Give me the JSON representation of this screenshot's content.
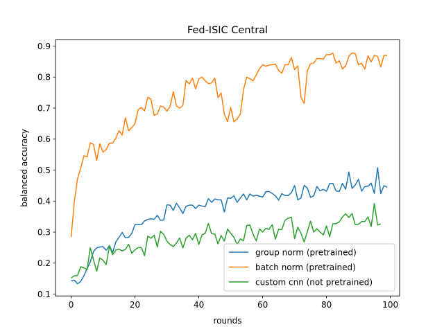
{
  "chart_data": {
    "type": "line",
    "title": "Fed-ISIC Central",
    "xlabel": "rounds",
    "ylabel": "balanced accuracy",
    "xlim": [
      -4.9,
      102.9
    ],
    "ylim": [
      0.094,
      0.92
    ],
    "x_ticks": [
      0,
      20,
      40,
      60,
      80,
      100
    ],
    "y_ticks": [
      0.1,
      0.2,
      0.3,
      0.4,
      0.5,
      0.6,
      0.7,
      0.8,
      0.9
    ],
    "grid": false,
    "legend_position": "lower-right",
    "series": [
      {
        "name": "group norm (pretrained)",
        "color": "#1f77b4",
        "values": [
          0.143,
          0.145,
          0.133,
          0.141,
          0.159,
          0.182,
          0.204,
          0.237,
          0.249,
          0.252,
          0.253,
          0.241,
          0.257,
          0.234,
          0.268,
          0.283,
          0.299,
          0.282,
          0.283,
          0.296,
          0.324,
          0.324,
          0.324,
          0.336,
          0.341,
          0.343,
          0.341,
          0.354,
          0.338,
          0.339,
          0.388,
          0.387,
          0.37,
          0.393,
          0.378,
          0.36,
          0.383,
          0.387,
          0.387,
          0.376,
          0.387,
          0.384,
          0.382,
          0.408,
          0.396,
          0.407,
          0.404,
          0.404,
          0.365,
          0.41,
          0.409,
          0.417,
          0.396,
          0.41,
          0.423,
          0.404,
          0.423,
          0.416,
          0.419,
          0.416,
          0.413,
          0.43,
          0.431,
          0.425,
          0.417,
          0.403,
          0.424,
          0.418,
          0.418,
          0.427,
          0.45,
          0.404,
          0.41,
          0.451,
          0.442,
          0.412,
          0.417,
          0.447,
          0.433,
          0.438,
          0.432,
          0.457,
          0.457,
          0.433,
          0.431,
          0.457,
          0.438,
          0.494,
          0.441,
          0.452,
          0.47,
          0.432,
          0.447,
          0.448,
          0.458,
          0.425,
          0.508,
          0.424,
          0.45,
          0.445
        ]
      },
      {
        "name": "batch norm (pretrained)",
        "color": "#ff7f0e",
        "values": [
          0.284,
          0.398,
          0.472,
          0.507,
          0.546,
          0.543,
          0.588,
          0.583,
          0.531,
          0.585,
          0.558,
          0.567,
          0.587,
          0.587,
          0.603,
          0.627,
          0.613,
          0.669,
          0.627,
          0.637,
          0.65,
          0.695,
          0.702,
          0.691,
          0.735,
          0.729,
          0.677,
          0.681,
          0.707,
          0.703,
          0.69,
          0.705,
          0.753,
          0.707,
          0.7,
          0.708,
          0.789,
          0.778,
          0.797,
          0.762,
          0.794,
          0.8,
          0.788,
          0.779,
          0.781,
          0.797,
          0.734,
          0.749,
          0.68,
          0.656,
          0.702,
          0.656,
          0.665,
          0.681,
          0.76,
          0.8,
          0.795,
          0.788,
          0.807,
          0.827,
          0.84,
          0.835,
          0.839,
          0.84,
          0.842,
          0.821,
          0.813,
          0.84,
          0.84,
          0.863,
          0.824,
          0.836,
          0.735,
          0.715,
          0.821,
          0.843,
          0.845,
          0.86,
          0.86,
          0.858,
          0.873,
          0.872,
          0.877,
          0.845,
          0.853,
          0.826,
          0.836,
          0.867,
          0.878,
          0.876,
          0.84,
          0.845,
          0.826,
          0.869,
          0.849,
          0.87,
          0.867,
          0.833,
          0.87,
          0.869
        ]
      },
      {
        "name": "custom cnn (not pretrained)",
        "color": "#2ca02c",
        "values": [
          0.152,
          0.159,
          0.16,
          0.188,
          0.185,
          0.179,
          0.25,
          0.21,
          0.174,
          0.217,
          0.209,
          0.195,
          0.256,
          0.227,
          0.242,
          0.245,
          0.239,
          0.244,
          0.261,
          0.232,
          0.243,
          0.25,
          0.25,
          0.224,
          0.287,
          0.28,
          0.29,
          0.252,
          0.303,
          0.293,
          0.271,
          0.26,
          0.253,
          0.265,
          0.281,
          0.249,
          0.28,
          0.29,
          0.275,
          0.296,
          0.26,
          0.291,
          0.296,
          0.328,
          0.295,
          0.294,
          0.262,
          0.289,
          0.271,
          0.31,
          0.296,
          0.283,
          0.26,
          0.278,
          0.272,
          0.321,
          0.323,
          0.293,
          0.272,
          0.31,
          0.3,
          0.312,
          0.309,
          0.324,
          0.277,
          0.309,
          0.308,
          0.338,
          0.345,
          0.348,
          0.279,
          0.316,
          0.296,
          0.268,
          0.302,
          0.335,
          0.3,
          0.311,
          0.3,
          0.291,
          0.32,
          0.285,
          0.327,
          0.327,
          0.333,
          0.349,
          0.359,
          0.347,
          0.36,
          0.324,
          0.325,
          0.334,
          0.334,
          0.349,
          0.318,
          0.392,
          0.323,
          0.326
        ]
      }
    ]
  }
}
